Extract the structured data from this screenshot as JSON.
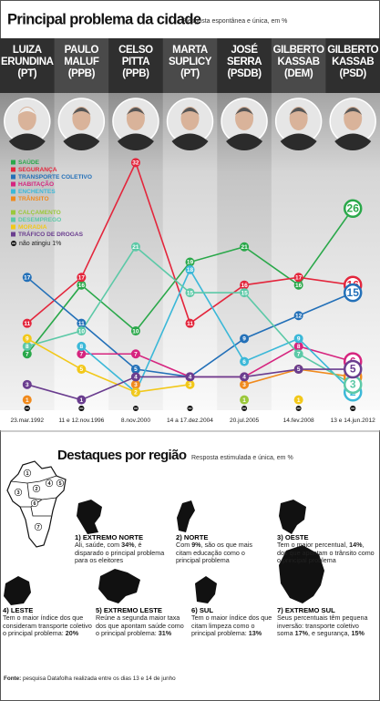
{
  "header": {
    "title": "Principal problema da cidade",
    "subtitle": "Resposta espontânea e única, em %"
  },
  "candidates": [
    {
      "name": [
        "LUIZA",
        "ERUNDINA"
      ],
      "party": "(PT)"
    },
    {
      "name": [
        "PAULO",
        "MALUF"
      ],
      "party": "(PPB)"
    },
    {
      "name": [
        "CELSO",
        "PITTA"
      ],
      "party": "(PPB)"
    },
    {
      "name": [
        "MARTA",
        "SUPLICY"
      ],
      "party": "(PT)"
    },
    {
      "name": [
        "JOSÉ",
        "SERRA"
      ],
      "party": "(PSDB)"
    },
    {
      "name": [
        "GILBERTO",
        "KASSAB"
      ],
      "party": "(DEM)"
    },
    {
      "name": [
        "GILBERTO",
        "KASSAB"
      ],
      "party": "(PSD)"
    }
  ],
  "chart_data": {
    "type": "line",
    "categories": [
      "23.mar.1992",
      "11 e 12.nov.1996",
      "8.nov.2000",
      "14 a 17.dez.2004",
      "20.jul.2005",
      "14.fev.2008",
      "13 e 14.jun.2012"
    ],
    "ylim": [
      0,
      33
    ],
    "legend_note": "não atingiu 1%",
    "series": [
      {
        "name": "SAÚDE",
        "color": "#2aa84a",
        "values": [
          7,
          16,
          10,
          19,
          21,
          16,
          26
        ]
      },
      {
        "name": "SEGURANÇA",
        "color": "#e3263c",
        "values": [
          11,
          17,
          32,
          11,
          16,
          17,
          16
        ]
      },
      {
        "name": "TRANSPORTE COLETIVO",
        "color": "#2370b8",
        "values": [
          17,
          11,
          5,
          4,
          9,
          12,
          15
        ]
      },
      {
        "name": "HABITAÇÃO",
        "color": "#d6257f",
        "values": [
          null,
          7,
          7,
          4,
          4,
          8,
          6
        ]
      },
      {
        "name": "ENCHENTES",
        "color": "#3bb8d8",
        "values": [
          null,
          8,
          2,
          18,
          6,
          9,
          2
        ]
      },
      {
        "name": "TRÂNSITO",
        "color": "#f08a1d",
        "values": [
          1,
          null,
          3,
          null,
          3,
          5,
          4
        ]
      },
      {
        "name": "CALÇAMENTO",
        "color": "#9bc83c",
        "values": [
          null,
          null,
          null,
          null,
          1,
          null,
          null
        ]
      },
      {
        "name": "DESEMPREGO",
        "color": "#5cc9a7",
        "values": [
          8,
          10,
          21,
          15,
          15,
          7,
          3
        ]
      },
      {
        "name": "MORADIA",
        "color": "#f2c81a",
        "values": [
          9,
          5,
          2,
          3,
          null,
          1,
          null
        ]
      },
      {
        "name": "TRÁFICO DE DROGAS",
        "color": "#6a3d8f",
        "values": [
          3,
          1,
          4,
          4,
          4,
          5,
          5
        ]
      }
    ]
  },
  "regions": {
    "title": "Destaques por região",
    "subtitle": "Resposta estimulada e única, em %",
    "map_labels": [
      "1",
      "2",
      "3",
      "4",
      "5",
      "6",
      "7"
    ],
    "items": [
      {
        "title": "1) EXTREMO NORTE",
        "text": [
          "Ali, saúde, com ",
          "34%",
          ", é disparado o principal problema para os eleitores"
        ]
      },
      {
        "title": "2) NORTE",
        "text": [
          "Com ",
          "9%",
          ", são os que mais citam educação como o principal problema"
        ]
      },
      {
        "title": "3) OESTE",
        "text": [
          "Tem o maior percentual, ",
          "14%",
          ", dos que apontam o trânsito como o principal problema"
        ]
      },
      {
        "title": "4) LESTE",
        "text": [
          "Tem o maior índice dos que consideram transporte coletivo o principal problema: ",
          "20%"
        ]
      },
      {
        "title": "5) EXTREMO LESTE",
        "text": [
          "Reúne a segunda maior taxa dos que apontam saúde como o principal problema: ",
          "31%"
        ]
      },
      {
        "title": "6) SUL",
        "text": [
          "Tem o maior índice dos que citam limpeza como o principal problema: ",
          "13%"
        ]
      },
      {
        "title": "7) EXTREMO SUL",
        "text": [
          "Seus percentuais têm pequena inversão: transporte coletivo soma ",
          "17%",
          ", e segurança, ",
          "15%"
        ]
      }
    ]
  },
  "source": [
    "Fonte:",
    " pesquisa Datafolha realizada entre os dias 13 e 14 de junho"
  ]
}
